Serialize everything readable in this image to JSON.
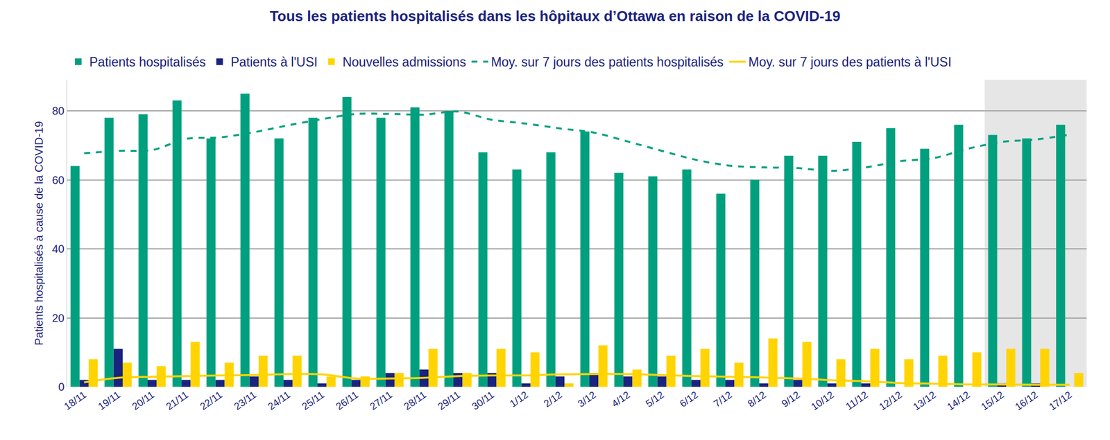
{
  "chart_data": {
    "type": "bar",
    "title": "Tous les patients hospitalisés dans les hôpitaux d’Ottawa en raison de la COVID-19",
    "y_label": "Patients hospitalisés à cause de la COVID-19",
    "categories": [
      "18/11",
      "19/11",
      "20/11",
      "21/11",
      "22/11",
      "23/11",
      "24/11",
      "25/11",
      "26/11",
      "27/11",
      "28/11",
      "29/11",
      "30/11",
      "1/12",
      "2/12",
      "3/12",
      "4/12",
      "5/12",
      "6/12",
      "7/12",
      "8/12",
      "9/12",
      "10/12",
      "11/12",
      "12/12",
      "13/12",
      "14/12",
      "15/12",
      "16/12",
      "17/12"
    ],
    "series": [
      {
        "name": "Patients hospitalisés",
        "type": "bar",
        "color": "#00a07f",
        "values": [
          64,
          78,
          79,
          83,
          72,
          85,
          72,
          78,
          84,
          78,
          81,
          80,
          68,
          63,
          68,
          74,
          62,
          61,
          63,
          56,
          60,
          67,
          67,
          71,
          75,
          69,
          76,
          73,
          72,
          76
        ]
      },
      {
        "name": "Patients à l'USI",
        "type": "bar",
        "color": "#1a237e",
        "values": [
          2,
          11,
          2,
          2,
          2,
          3,
          2,
          1,
          2,
          4,
          5,
          4,
          4,
          1,
          3,
          4,
          3,
          3,
          2,
          2,
          1,
          2,
          1,
          1,
          0,
          0,
          0,
          1,
          1,
          0
        ]
      },
      {
        "name": "Nouvelles admissions",
        "type": "bar",
        "color": "#ffd400",
        "values": [
          8,
          7,
          6,
          13,
          7,
          9,
          9,
          3,
          3,
          4,
          11,
          4,
          11,
          10,
          1,
          12,
          5,
          9,
          11,
          7,
          14,
          13,
          8,
          11,
          8,
          9,
          10,
          11,
          11,
          4
        ]
      },
      {
        "name": "Moy. sur 7 jours des patients hospitalisés",
        "type": "line",
        "line_style": "dash",
        "color": "#00a07f",
        "values": [
          67.7,
          68.4,
          68.6,
          71.9,
          72.3,
          73.8,
          75.8,
          77.6,
          79.1,
          79.1,
          78.9,
          79.8,
          77.4,
          76.3,
          74.9,
          73.7,
          71.1,
          68.4,
          65.8,
          64.1,
          63.6,
          63.4,
          62.6,
          63.6,
          65.4,
          66.3,
          69.0,
          71.0,
          71.7,
          73.1
        ]
      },
      {
        "name": "Moy. sur 7 jours des patients à l'USI",
        "type": "line",
        "line_style": "solid",
        "color": "#ffd400",
        "values": [
          1.3,
          2.6,
          2.9,
          3.1,
          3.3,
          3.4,
          3.7,
          3.6,
          2.4,
          2.4,
          2.6,
          3.1,
          3.3,
          3.3,
          3.6,
          3.7,
          3.7,
          3.4,
          3.1,
          2.9,
          2.7,
          2.4,
          1.9,
          1.6,
          1.1,
          0.9,
          0.7,
          0.7,
          0.6,
          0.6
        ]
      }
    ],
    "highlight": {
      "from": "15/12",
      "to": "17/12"
    },
    "ylim": [
      0,
      89
    ],
    "yticks": [
      0,
      20,
      40,
      60,
      80
    ],
    "grid": true,
    "legend": "top"
  }
}
